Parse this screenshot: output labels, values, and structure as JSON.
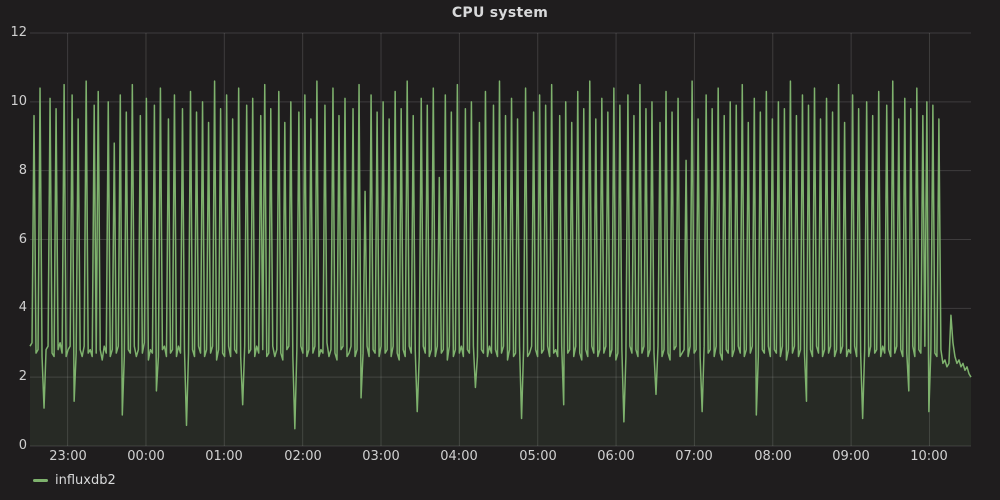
{
  "panel": {
    "background": "#1f1d1e",
    "grid_color": "rgba(255,255,255,0.14)"
  },
  "chart_data": {
    "type": "line",
    "title": "CPU system",
    "xlabel": "",
    "ylabel": "",
    "ylim": [
      0,
      12
    ],
    "y_ticks": [
      0,
      2,
      4,
      6,
      8,
      10,
      12
    ],
    "x_domain": [
      22.52,
      34.53
    ],
    "x_ticks": [
      {
        "pos": 23,
        "label": "23:00"
      },
      {
        "pos": 24,
        "label": "00:00"
      },
      {
        "pos": 25,
        "label": "01:00"
      },
      {
        "pos": 26,
        "label": "02:00"
      },
      {
        "pos": 27,
        "label": "03:00"
      },
      {
        "pos": 28,
        "label": "04:00"
      },
      {
        "pos": 29,
        "label": "05:00"
      },
      {
        "pos": 30,
        "label": "06:00"
      },
      {
        "pos": 31,
        "label": "07:00"
      },
      {
        "pos": 32,
        "label": "08:00"
      },
      {
        "pos": 33,
        "label": "09:00"
      },
      {
        "pos": 34,
        "label": "10:00"
      }
    ],
    "grid": true,
    "legend_position": "bottom-left",
    "series": [
      {
        "name": "influxdb2",
        "color": "#7eb26d",
        "fill_opacity": 0.09,
        "values": [
          2.9,
          3.0,
          9.6,
          2.7,
          2.8,
          10.4,
          2.6,
          1.1,
          2.8,
          2.9,
          10.1,
          2.7,
          2.6,
          9.8,
          2.8,
          3.0,
          2.7,
          10.5,
          2.6,
          2.8,
          2.9,
          10.2,
          1.3,
          2.7,
          9.5,
          2.8,
          2.6,
          2.9,
          10.6,
          2.7,
          2.8,
          2.6,
          9.9,
          2.7,
          10.3,
          2.8,
          2.5,
          2.9,
          2.7,
          10.0,
          2.6,
          2.8,
          8.8,
          2.7,
          2.9,
          10.2,
          0.9,
          2.6,
          9.7,
          2.8,
          2.7,
          10.5,
          2.9,
          2.6,
          2.8,
          9.6,
          2.7,
          3.0,
          10.1,
          2.5,
          2.8,
          2.7,
          9.9,
          1.6,
          2.6,
          10.4,
          2.8,
          2.9,
          2.6,
          9.5,
          2.7,
          2.8,
          10.2,
          2.6,
          2.9,
          2.7,
          9.8,
          2.8,
          0.6,
          2.7,
          10.3,
          2.8,
          2.6,
          9.7,
          2.9,
          2.7,
          10.0,
          2.6,
          2.8,
          9.4,
          2.7,
          2.9,
          10.6,
          2.5,
          2.8,
          9.8,
          2.7,
          2.6,
          10.2,
          2.9,
          2.6,
          9.5,
          2.8,
          2.7,
          10.4,
          2.6,
          1.2,
          2.9,
          9.9,
          2.7,
          2.8,
          10.1,
          2.6,
          2.9,
          2.7,
          9.6,
          2.8,
          10.5,
          2.6,
          2.7,
          9.8,
          2.9,
          2.6,
          2.8,
          10.3,
          2.7,
          2.5,
          9.4,
          2.8,
          2.9,
          10.0,
          2.6,
          0.5,
          2.8,
          9.7,
          2.9,
          2.7,
          10.2,
          2.6,
          2.8,
          9.5,
          2.7,
          2.9,
          10.6,
          2.6,
          2.8,
          2.7,
          9.9,
          3.0,
          2.6,
          2.8,
          10.4,
          2.7,
          2.5,
          9.6,
          2.8,
          2.9,
          10.1,
          2.6,
          2.7,
          2.9,
          9.8,
          2.6,
          2.8,
          10.5,
          1.4,
          2.7,
          7.4,
          2.9,
          2.6,
          10.2,
          2.8,
          2.7,
          9.7,
          2.6,
          2.9,
          10.0,
          2.7,
          2.8,
          9.5,
          2.6,
          2.9,
          10.3,
          2.7,
          2.5,
          9.8,
          2.8,
          2.6,
          10.6,
          2.9,
          2.7,
          9.6,
          2.8,
          1.0,
          2.6,
          10.1,
          2.9,
          2.7,
          9.9,
          2.6,
          2.8,
          10.4,
          2.6,
          2.9,
          7.8,
          2.7,
          2.8,
          10.2,
          2.5,
          2.9,
          9.7,
          2.6,
          2.8,
          10.5,
          2.7,
          2.9,
          2.6,
          9.8,
          2.8,
          2.7,
          10.0,
          2.9,
          1.7,
          2.6,
          9.4,
          2.8,
          2.7,
          10.3,
          2.6,
          2.9,
          2.7,
          9.9,
          2.8,
          2.6,
          10.6,
          2.7,
          2.9,
          9.6,
          2.5,
          2.8,
          10.1,
          2.6,
          2.7,
          9.5,
          2.9,
          0.8,
          2.8,
          10.4,
          2.6,
          2.7,
          2.9,
          9.7,
          2.8,
          2.6,
          10.2,
          2.7,
          2.8,
          9.9,
          2.9,
          2.6,
          10.5,
          2.7,
          2.8,
          2.6,
          9.6,
          2.9,
          1.2,
          10.0,
          2.7,
          2.8,
          9.4,
          2.6,
          2.9,
          10.3,
          2.7,
          2.5,
          9.8,
          2.8,
          2.6,
          10.6,
          2.9,
          2.7,
          9.5,
          2.6,
          2.8,
          10.1,
          2.7,
          2.9,
          9.7,
          2.6,
          2.8,
          10.4,
          2.5,
          2.7,
          9.9,
          2.8,
          0.7,
          2.6,
          10.2,
          2.9,
          2.7,
          9.6,
          2.8,
          2.6,
          10.5,
          2.7,
          2.9,
          9.8,
          2.6,
          2.8,
          10.0,
          2.7,
          1.5,
          2.9,
          9.4,
          2.6,
          2.8,
          10.3,
          2.7,
          2.5,
          9.7,
          2.8,
          2.9,
          10.1,
          2.6,
          2.7,
          2.8,
          8.3,
          2.6,
          2.9,
          10.6,
          2.7,
          2.8,
          9.5,
          2.6,
          1.0,
          2.9,
          10.2,
          2.7,
          2.8,
          9.8,
          2.6,
          2.9,
          10.4,
          2.7,
          2.5,
          9.6,
          2.8,
          2.7,
          10.0,
          2.6,
          2.8,
          9.9,
          2.9,
          2.7,
          10.5,
          2.6,
          2.8,
          9.4,
          2.7,
          2.9,
          10.1,
          0.9,
          2.6,
          9.7,
          2.8,
          2.7,
          10.3,
          2.9,
          2.6,
          9.5,
          2.8,
          2.7,
          10.0,
          2.6,
          2.9,
          9.8,
          2.5,
          2.8,
          10.6,
          2.7,
          2.9,
          9.6,
          2.6,
          2.8,
          10.2,
          2.7,
          1.3,
          9.9,
          2.8,
          2.6,
          10.4,
          2.9,
          2.7,
          9.5,
          2.6,
          2.8,
          10.1,
          2.7,
          2.9,
          9.7,
          2.6,
          2.8,
          10.5,
          2.7,
          2.9,
          9.4,
          2.6,
          2.8,
          2.7,
          10.2,
          2.9,
          2.6,
          9.8,
          2.7,
          0.8,
          2.8,
          10.0,
          2.6,
          2.9,
          9.6,
          2.7,
          2.8,
          10.3,
          2.6,
          2.9,
          2.7,
          9.9,
          2.8,
          2.6,
          10.6,
          2.7,
          2.9,
          9.5,
          2.8,
          2.6,
          10.1,
          2.7,
          1.6,
          9.8,
          2.9,
          2.6,
          10.4,
          2.8,
          2.7,
          9.6,
          2.9,
          10.0,
          1.0,
          2.8,
          9.9,
          2.7,
          2.6,
          9.5,
          2.8,
          2.4,
          2.5,
          2.3,
          2.4,
          3.8,
          3.0,
          2.6,
          2.4,
          2.5,
          2.3,
          2.4,
          2.2,
          2.3,
          2.1,
          2.0
        ]
      }
    ]
  }
}
